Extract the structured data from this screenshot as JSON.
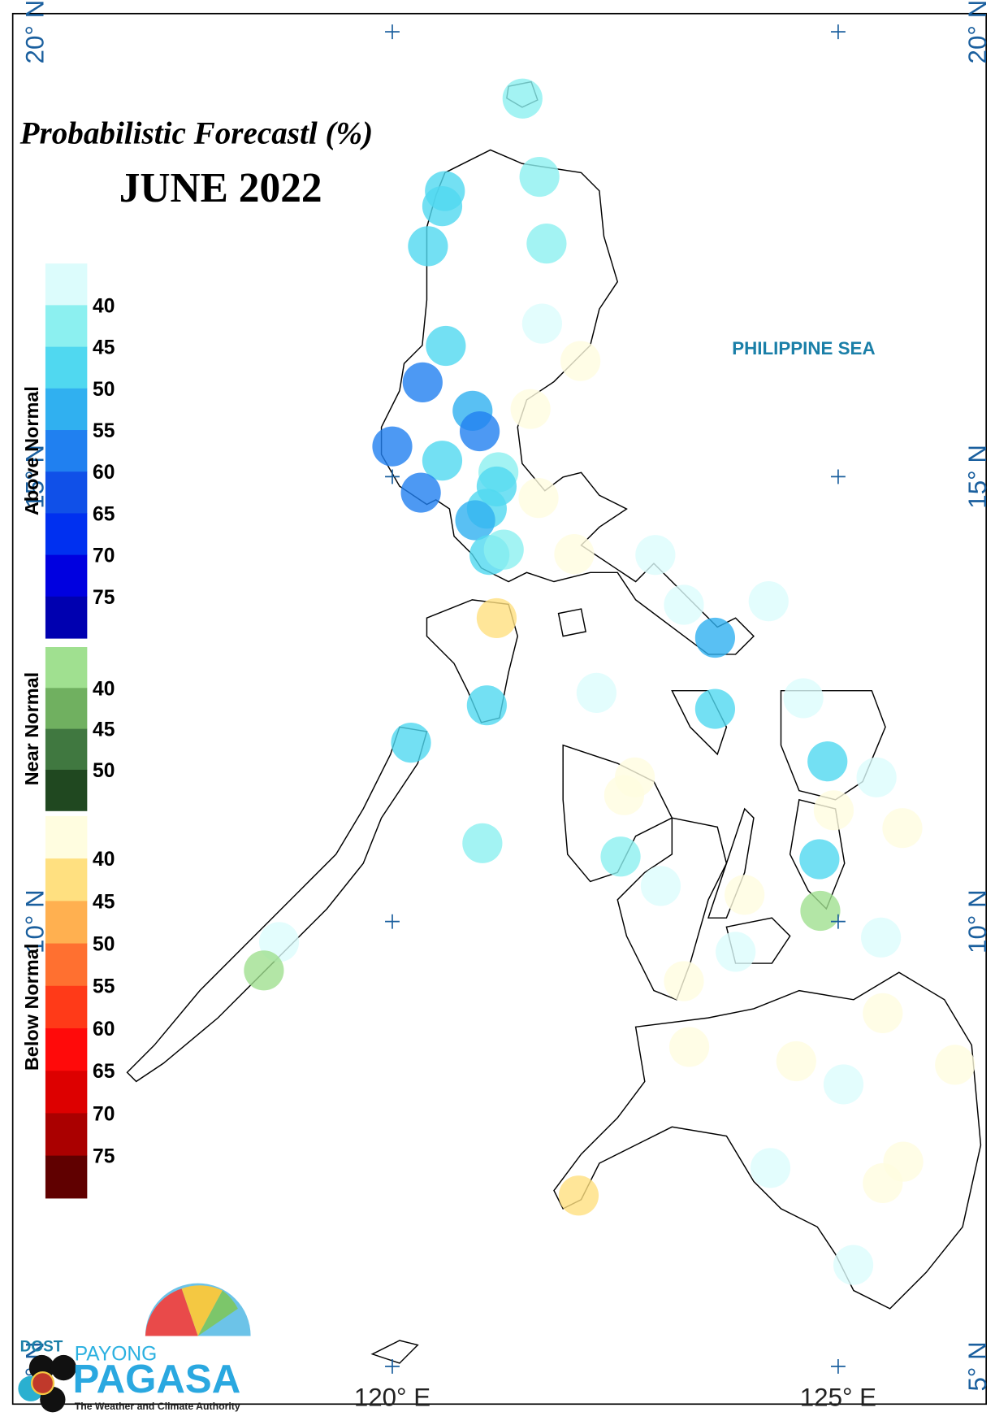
{
  "title": "Probabilistic Forecastl (%)",
  "subtitle": "JUNE 2022",
  "sea_label": "PHILIPPINE SEA",
  "lat_ticks": [
    {
      "value": 20,
      "label": "20° N"
    },
    {
      "value": 15,
      "label": "15° N"
    },
    {
      "value": 10,
      "label": "10° N"
    },
    {
      "value": 5,
      "label": "5° N"
    }
  ],
  "lon_ticks": [
    {
      "value": 120,
      "label": "120° E"
    },
    {
      "value": 125,
      "label": "125° E"
    }
  ],
  "legend": [
    {
      "name": "Above Normal",
      "ticks": [
        40,
        45,
        50,
        55,
        60,
        65,
        70,
        75
      ],
      "colors": [
        "#dcfcfc",
        "#8cf0f0",
        "#50d8f0",
        "#30b0f0",
        "#2080f0",
        "#1050e8",
        "#0030f0",
        "#0000e0",
        "#0000b0"
      ],
      "stations": [
        {
          "lon": 121.46,
          "lat": 19.25,
          "value": 42
        },
        {
          "lon": 121.65,
          "lat": 18.37,
          "value": 42
        },
        {
          "lon": 120.59,
          "lat": 18.21,
          "value": 47
        },
        {
          "lon": 120.56,
          "lat": 18.04,
          "value": 47
        },
        {
          "lon": 120.4,
          "lat": 17.59,
          "value": 47
        },
        {
          "lon": 121.73,
          "lat": 17.62,
          "value": 42
        },
        {
          "lon": 121.68,
          "lat": 16.72,
          "value": 38
        },
        {
          "lon": 120.6,
          "lat": 16.47,
          "value": 47
        },
        {
          "lon": 120.34,
          "lat": 16.06,
          "value": 57
        },
        {
          "lon": 120.9,
          "lat": 15.74,
          "value": 52
        },
        {
          "lon": 120.98,
          "lat": 15.51,
          "value": 57
        },
        {
          "lon": 120.0,
          "lat": 15.34,
          "value": 57
        },
        {
          "lon": 120.56,
          "lat": 15.18,
          "value": 47
        },
        {
          "lon": 121.19,
          "lat": 15.05,
          "value": 42
        },
        {
          "lon": 121.17,
          "lat": 14.89,
          "value": 47
        },
        {
          "lon": 120.32,
          "lat": 14.82,
          "value": 57
        },
        {
          "lon": 121.06,
          "lat": 14.64,
          "value": 47
        },
        {
          "lon": 120.93,
          "lat": 14.51,
          "value": 52
        },
        {
          "lon": 121.09,
          "lat": 14.12,
          "value": 47
        },
        {
          "lon": 121.25,
          "lat": 14.18,
          "value": 42
        },
        {
          "lon": 122.95,
          "lat": 14.12,
          "value": 38
        },
        {
          "lon": 123.27,
          "lat": 13.56,
          "value": 38
        },
        {
          "lon": 124.22,
          "lat": 13.6,
          "value": 38
        },
        {
          "lon": 123.62,
          "lat": 13.19,
          "value": 52
        },
        {
          "lon": 122.29,
          "lat": 12.57,
          "value": 38
        },
        {
          "lon": 121.06,
          "lat": 12.43,
          "value": 47
        },
        {
          "lon": 123.62,
          "lat": 12.39,
          "value": 47
        },
        {
          "lon": 124.61,
          "lat": 12.51,
          "value": 38
        },
        {
          "lon": 120.21,
          "lat": 12.01,
          "value": 47
        },
        {
          "lon": 124.88,
          "lat": 11.8,
          "value": 47
        },
        {
          "lon": 125.43,
          "lat": 11.62,
          "value": 38
        },
        {
          "lon": 121.01,
          "lat": 10.88,
          "value": 42
        },
        {
          "lon": 122.56,
          "lat": 10.73,
          "value": 42
        },
        {
          "lon": 123.01,
          "lat": 10.4,
          "value": 38
        },
        {
          "lon": 124.79,
          "lat": 10.7,
          "value": 47
        },
        {
          "lon": 125.48,
          "lat": 9.82,
          "value": 38
        },
        {
          "lon": 123.85,
          "lat": 9.66,
          "value": 38
        },
        {
          "lon": 118.73,
          "lat": 9.77,
          "value": 38
        },
        {
          "lon": 125.06,
          "lat": 8.17,
          "value": 38
        },
        {
          "lon": 124.24,
          "lat": 7.23,
          "value": 38
        },
        {
          "lon": 125.17,
          "lat": 6.14,
          "value": 38
        }
      ]
    },
    {
      "name": "Near Normal",
      "ticks": [
        40,
        45,
        50
      ],
      "colors": [
        "#a0e090",
        "#70b060",
        "#407840",
        "#204820"
      ],
      "stations": [
        {
          "lon": 124.8,
          "lat": 10.12,
          "value": 38
        },
        {
          "lon": 118.56,
          "lat": 9.45,
          "value": 38
        }
      ]
    },
    {
      "name": "Below Normal",
      "ticks": [
        40,
        45,
        50,
        55,
        60,
        65,
        70,
        75
      ],
      "colors": [
        "#fffde0",
        "#ffe080",
        "#ffb050",
        "#ff7030",
        "#ff3a18",
        "#ff0a0a",
        "#dd0000",
        "#aa0000",
        "#600000"
      ],
      "stations": [
        {
          "lon": 122.11,
          "lat": 16.3,
          "value": 38
        },
        {
          "lon": 121.55,
          "lat": 15.76,
          "value": 38
        },
        {
          "lon": 121.64,
          "lat": 14.76,
          "value": 38
        },
        {
          "lon": 122.04,
          "lat": 14.13,
          "value": 38
        },
        {
          "lon": 121.17,
          "lat": 13.41,
          "value": 42
        },
        {
          "lon": 122.72,
          "lat": 11.62,
          "value": 38
        },
        {
          "lon": 122.6,
          "lat": 11.42,
          "value": 38
        },
        {
          "lon": 124.95,
          "lat": 11.25,
          "value": 38
        },
        {
          "lon": 125.72,
          "lat": 11.05,
          "value": 38
        },
        {
          "lon": 123.95,
          "lat": 10.3,
          "value": 38
        },
        {
          "lon": 123.27,
          "lat": 9.33,
          "value": 38
        },
        {
          "lon": 123.33,
          "lat": 8.59,
          "value": 38
        },
        {
          "lon": 125.5,
          "lat": 8.97,
          "value": 38
        },
        {
          "lon": 124.53,
          "lat": 8.43,
          "value": 38
        },
        {
          "lon": 126.31,
          "lat": 8.39,
          "value": 38
        },
        {
          "lon": 125.73,
          "lat": 7.3,
          "value": 38
        },
        {
          "lon": 125.5,
          "lat": 7.06,
          "value": 38
        },
        {
          "lon": 122.09,
          "lat": 6.92,
          "value": 42
        }
      ]
    }
  ],
  "logo": {
    "agency": "DOST",
    "brand_top": "PAYONG",
    "brand": "PAGASA",
    "tagline": "The Weather and Climate Authority"
  }
}
